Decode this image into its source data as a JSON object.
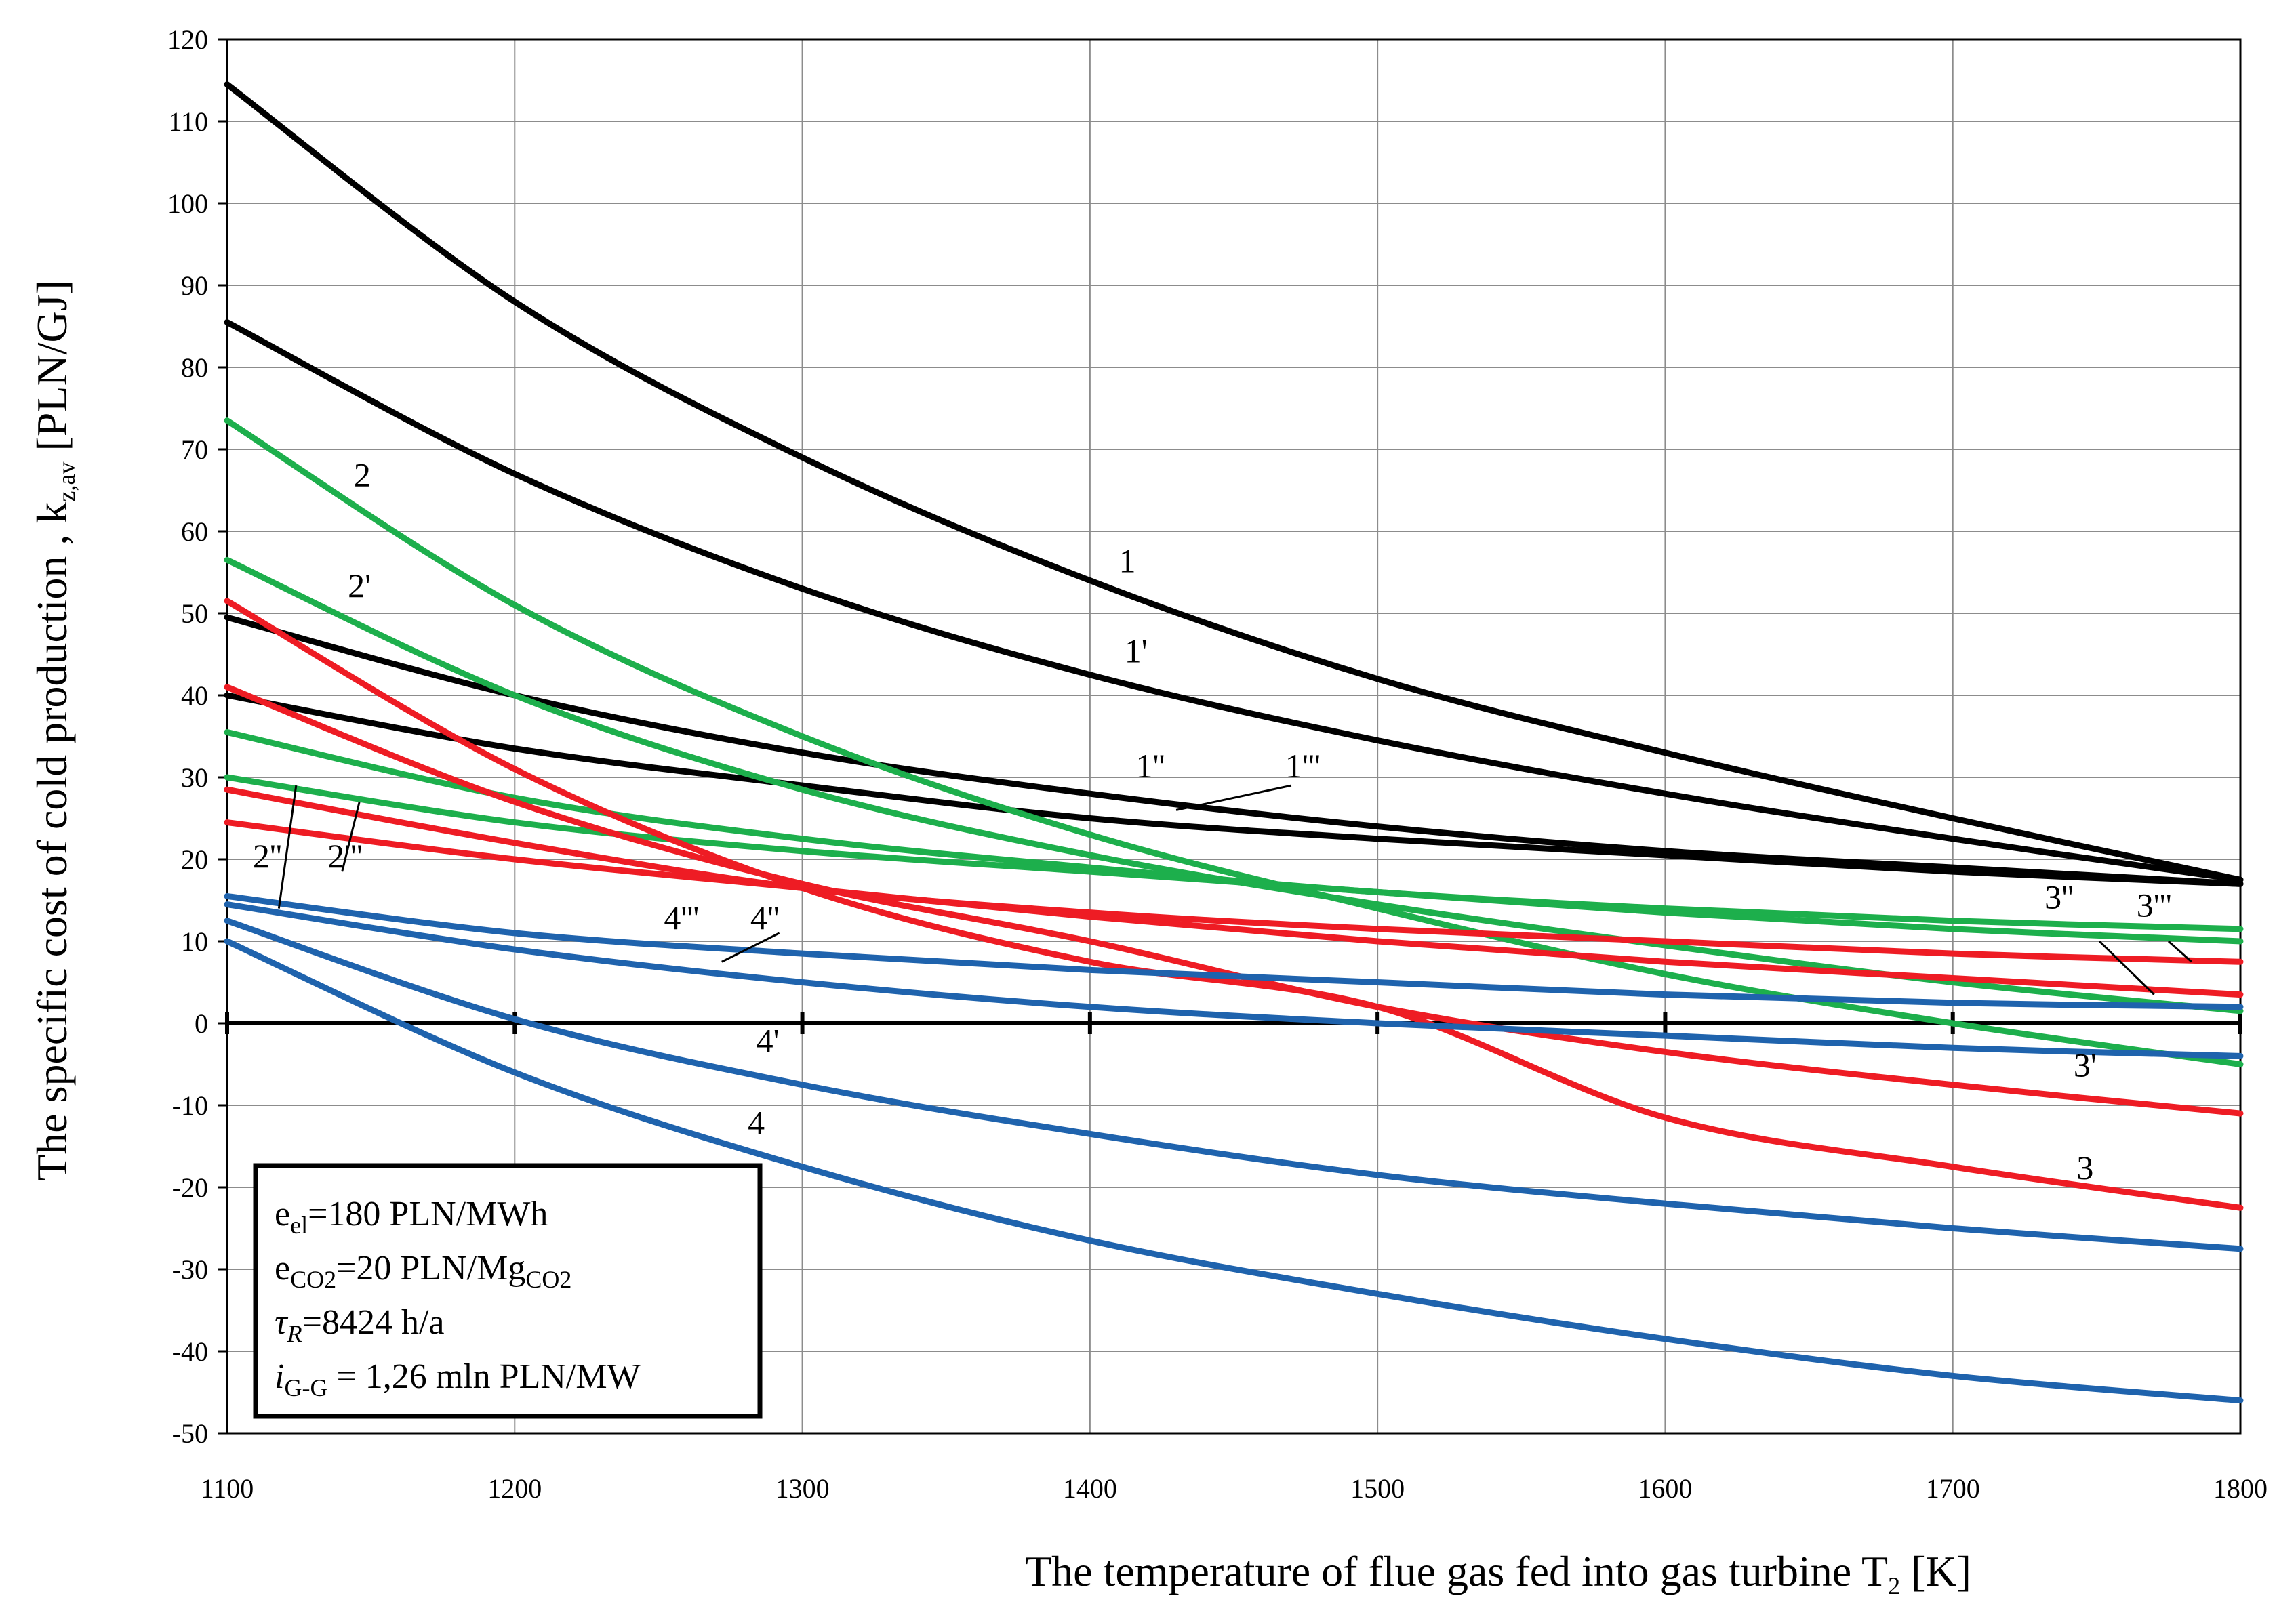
{
  "chart_data": {
    "type": "line",
    "xlabel": "The temperature of flue gas fed into gas turbine T",
    "xlabel_sub": "2",
    "xlabel_unit": " [K]",
    "ylabel": "The specific cost of cold production , k",
    "ylabel_sub": "z,av",
    "ylabel_unit": " [PLN/GJ]",
    "xlim": [
      1100,
      1800
    ],
    "ylim": [
      -50,
      120
    ],
    "x_ticks": [
      1100,
      1200,
      1300,
      1400,
      1500,
      1600,
      1700,
      1800
    ],
    "y_ticks": [
      -50,
      -40,
      -30,
      -20,
      -10,
      0,
      10,
      20,
      30,
      40,
      50,
      60,
      70,
      80,
      90,
      100,
      110,
      120
    ],
    "grid": true,
    "colors": {
      "black": "#000000",
      "green": "#1daf4c",
      "red": "#ee1c24",
      "blue": "#1f63ad"
    },
    "x": [
      1100,
      1200,
      1300,
      1400,
      1500,
      1600,
      1700,
      1800
    ],
    "series": [
      {
        "name": "1",
        "color": "black",
        "values": [
          114.5,
          88,
          69,
          54,
          42,
          33,
          25,
          17.5
        ]
      },
      {
        "name": "1'",
        "color": "black",
        "values": [
          85.5,
          67,
          53,
          42.5,
          34.5,
          28,
          22.5,
          17.5
        ]
      },
      {
        "name": "1''",
        "color": "black",
        "values": [
          49.5,
          40,
          33,
          28,
          24,
          21,
          19,
          17
        ]
      },
      {
        "name": "1'''",
        "color": "black",
        "values": [
          40,
          33.5,
          29,
          25,
          22.5,
          20.5,
          18.5,
          17
        ]
      },
      {
        "name": "2",
        "color": "green",
        "values": [
          73.5,
          51,
          35,
          23,
          14,
          6,
          0,
          -5
        ]
      },
      {
        "name": "2'",
        "color": "green",
        "values": [
          56.5,
          40,
          28.5,
          20.5,
          14.5,
          9.5,
          5,
          1.5
        ]
      },
      {
        "name": "2''",
        "color": "green",
        "values": [
          35.5,
          27.5,
          22.5,
          19,
          16,
          14,
          12.5,
          11.5
        ]
      },
      {
        "name": "2'''",
        "color": "green",
        "values": [
          30,
          24.5,
          21,
          18.5,
          16,
          13.5,
          11.5,
          10
        ]
      },
      {
        "name": "3",
        "color": "red",
        "values": [
          51.5,
          31,
          16.5,
          7.5,
          2,
          -11.5,
          -17.5,
          -22.5
        ]
      },
      {
        "name": "3'",
        "color": "red",
        "values": [
          41,
          27,
          17,
          10,
          2,
          -3.5,
          -7.5,
          -11
        ]
      },
      {
        "name": "3''",
        "color": "red",
        "values": [
          28.5,
          22,
          16.5,
          13.5,
          11.5,
          10,
          8.5,
          7.5
        ]
      },
      {
        "name": "3'''",
        "color": "red",
        "values": [
          24.5,
          20,
          16.5,
          13,
          10,
          7.5,
          5.5,
          3.5
        ]
      },
      {
        "name": "4",
        "color": "blue",
        "values": [
          10,
          -6,
          -17.5,
          -26.5,
          -33,
          -38.5,
          -43,
          -46
        ]
      },
      {
        "name": "4'",
        "color": "blue",
        "values": [
          12.5,
          0.5,
          -7.5,
          -13.5,
          -18.5,
          -22,
          -25,
          -27.5
        ]
      },
      {
        "name": "4''",
        "color": "blue",
        "values": [
          14.5,
          9,
          5,
          2,
          0,
          -1.5,
          -3,
          -4
        ]
      },
      {
        "name": "4'''",
        "color": "blue",
        "values": [
          15.5,
          11,
          8.5,
          6.5,
          5,
          3.5,
          2.5,
          2
        ]
      }
    ],
    "curve_labels": [
      {
        "text": "1",
        "x": 1413,
        "y": 55
      },
      {
        "text": "1'",
        "x": 1416,
        "y": 44
      },
      {
        "text": "1''",
        "x": 1421,
        "y": 30
      },
      {
        "text": "1'''",
        "x": 1474,
        "y": 30
      },
      {
        "text": "2",
        "x": 1147,
        "y": 65.5
      },
      {
        "text": "2'",
        "x": 1146,
        "y": 52
      },
      {
        "text": "2''",
        "x": 1114,
        "y": 19
      },
      {
        "text": "2'''",
        "x": 1141,
        "y": 19
      },
      {
        "text": "3",
        "x": 1746,
        "y": -19
      },
      {
        "text": "3'",
        "x": 1746,
        "y": -6.5
      },
      {
        "text": "3''",
        "x": 1737,
        "y": 14
      },
      {
        "text": "3'''",
        "x": 1770,
        "y": 13
      },
      {
        "text": "4",
        "x": 1284,
        "y": -13.5
      },
      {
        "text": "4'",
        "x": 1288,
        "y": -3.5
      },
      {
        "text": "4''",
        "x": 1287,
        "y": 11.5
      },
      {
        "text": "4'''",
        "x": 1258,
        "y": 11.5
      }
    ],
    "leader_lines": [
      {
        "from": [
          1118,
          14
        ],
        "to": [
          1124,
          29
        ]
      },
      {
        "from": [
          1140,
          18.5
        ],
        "to": [
          1146,
          27
        ]
      },
      {
        "from": [
          1430,
          26
        ],
        "to": [
          1470,
          29
        ]
      },
      {
        "from": [
          1272,
          7.5
        ],
        "to": [
          1292,
          11
        ]
      },
      {
        "from": [
          1751,
          10
        ],
        "to": [
          1770,
          3.5
        ]
      },
      {
        "from": [
          1775,
          10
        ],
        "to": [
          1783,
          7.5
        ]
      }
    ]
  },
  "legend_box": {
    "line1": {
      "main": "e",
      "sub": "el",
      "rest": "=180 PLN/MWh"
    },
    "line2": {
      "main": "e",
      "sub": "CO2",
      "rest": "=20 PLN/Mg",
      "sub2": "CO2"
    },
    "line3": {
      "main": "τ",
      "sub": "R",
      "rest": "=8424 h/a"
    },
    "line4": {
      "main": "i",
      "sub": "G-G",
      "rest": " = 1,26 mln PLN/MW"
    }
  }
}
